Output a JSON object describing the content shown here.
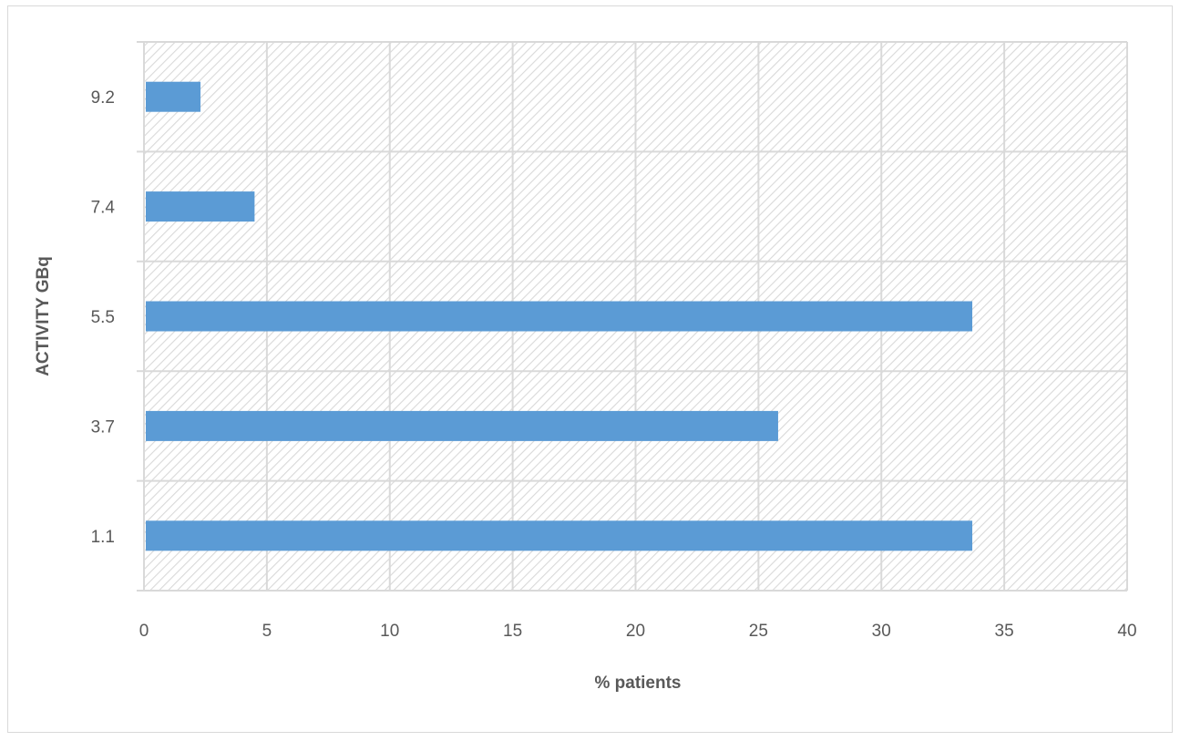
{
  "chart_data": {
    "type": "bar",
    "orientation": "horizontal",
    "title": "",
    "xlabel": "% patients",
    "ylabel": "ACTIVITY  GBq",
    "categories": [
      "1.1",
      "3.7",
      "5.5",
      "7.4",
      "9.2"
    ],
    "values": [
      33.7,
      25.8,
      33.7,
      4.5,
      2.3
    ],
    "xlim": [
      0,
      40
    ],
    "xticks": [
      "0",
      "5",
      "10",
      "15",
      "20",
      "25",
      "30",
      "35",
      "40"
    ],
    "grid": true,
    "legend": "none",
    "colors": {
      "bar": "#5b9bd5",
      "grid": "#d9d9d9",
      "hatch": "#d9d9d9",
      "text": "#595959"
    }
  }
}
